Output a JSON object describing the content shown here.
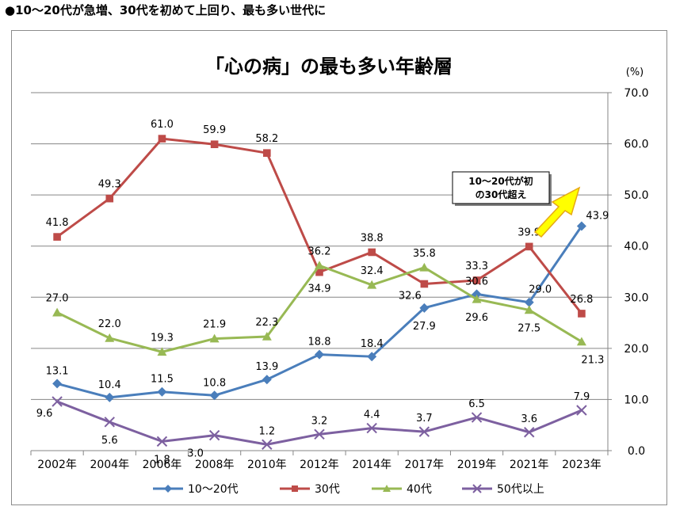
{
  "headline": "●10～20代が急増、30代を初めて上回り、最も多い世代に",
  "chart_data": {
    "type": "line",
    "title": "「心の病」の最も多い年齢層",
    "y_unit": "(%)",
    "ylim": [
      0,
      70
    ],
    "y_ticks": [
      "0.0",
      "10.0",
      "20.0",
      "30.0",
      "40.0",
      "50.0",
      "60.0",
      "70.0"
    ],
    "y_tick_values": [
      0,
      10,
      20,
      30,
      40,
      50,
      60,
      70
    ],
    "categories": [
      "2002年",
      "2004年",
      "2006年",
      "2008年",
      "2010年",
      "2012年",
      "2014年",
      "2017年",
      "2019年",
      "2021年",
      "2023年"
    ],
    "grid": true,
    "legend_position": "bottom",
    "series": [
      {
        "name": "10～20代",
        "color": "#4a7ebb",
        "marker": "diamond",
        "values": [
          13.1,
          10.4,
          11.5,
          10.8,
          13.9,
          18.8,
          18.4,
          27.9,
          30.6,
          29.0,
          43.9
        ],
        "labels": [
          "13.1",
          "10.4",
          "11.5",
          "10.8",
          "13.9",
          "18.8",
          "18.4",
          "27.9",
          "30.6",
          "29.0",
          "43.9"
        ]
      },
      {
        "name": "30代",
        "color": "#be4b48",
        "marker": "square",
        "values": [
          41.8,
          49.3,
          61.0,
          59.9,
          58.2,
          34.9,
          38.8,
          32.6,
          33.3,
          39.9,
          26.8
        ],
        "labels": [
          "41.8",
          "49.3",
          "61.0",
          "59.9",
          "58.2",
          "34.9",
          "38.8",
          "32.6",
          "33.3",
          "39.9",
          "26.8"
        ]
      },
      {
        "name": "40代",
        "color": "#98b954",
        "marker": "triangle",
        "values": [
          27.0,
          22.0,
          19.3,
          21.9,
          22.3,
          36.2,
          32.4,
          35.8,
          29.6,
          27.5,
          21.3
        ],
        "labels": [
          "27.0",
          "22.0",
          "19.3",
          "21.9",
          "22.3",
          "36.2",
          "32.4",
          "35.8",
          "29.6",
          "27.5",
          "21.3"
        ]
      },
      {
        "name": "50代以上",
        "color": "#7d60a0",
        "marker": "x",
        "values": [
          9.6,
          5.6,
          1.8,
          3.0,
          1.2,
          3.2,
          4.4,
          3.7,
          6.5,
          3.6,
          7.9
        ],
        "labels": [
          "9.6",
          "5.6",
          "1.8",
          "3.0",
          "1.2",
          "3.2",
          "4.4",
          "3.7",
          "6.5",
          "3.6",
          "7.9"
        ]
      }
    ],
    "annotation": {
      "lines": [
        "10～20代が初",
        "の30代超え"
      ],
      "arrow_color": "#ffff00",
      "arrow_stroke": "#e6a817"
    }
  }
}
